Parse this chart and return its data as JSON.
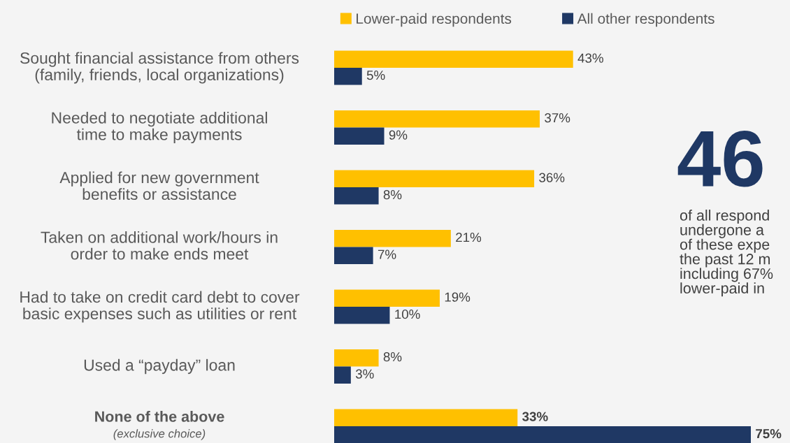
{
  "chart_data": {
    "type": "bar",
    "orientation": "horizontal",
    "categories": [
      "Sought financial assistance from others\n(family, friends, local organizations)",
      "Needed to negotiate additional\ntime to make payments",
      "Applied for new government\nbenefits or assistance",
      "Taken on additional work/hours in\norder to make ends meet",
      "Had to take on credit card debt to cover\nbasic expenses such as utilities or rent",
      "Used a “payday” loan",
      "None of the above\n(exclusive choice)"
    ],
    "series": [
      {
        "name": "Lower-paid respondents",
        "color": "#ffc000",
        "values": [
          43,
          37,
          36,
          21,
          19,
          8,
          33
        ],
        "value_labels": [
          "43%",
          "37%",
          "36%",
          "21%",
          "19%",
          "8%",
          "33%"
        ]
      },
      {
        "name": "All other respondents",
        "color": "#1f3864",
        "values": [
          5,
          9,
          8,
          7,
          10,
          3,
          75
        ],
        "value_labels": [
          "5%",
          "9%",
          "8%",
          "7%",
          "10%",
          "3%",
          "75%"
        ]
      }
    ],
    "legend": "top",
    "annotations": [
      "46",
      "of all respond\nundergone a\nof these expe\nthe past 12 m\nincluding 67%\nlower-paid in"
    ]
  }
}
